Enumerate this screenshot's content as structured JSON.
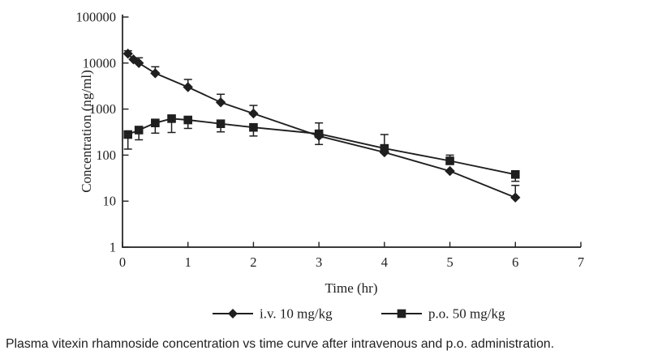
{
  "theme": {
    "background": "#ffffff",
    "ink": "#1f1f1f"
  },
  "caption": "Plasma vitexin rhamnoside concentration vs time curve after intravenous and p.o. administration.",
  "chart_data": {
    "type": "line",
    "title": "",
    "xlabel": "Time (hr)",
    "ylabel": "Concentration (ng/ml)",
    "x_ticks": [
      0,
      1,
      2,
      3,
      4,
      5,
      6,
      7
    ],
    "y_ticks": [
      1,
      10,
      100,
      1000,
      10000,
      100000
    ],
    "xlim": [
      0,
      7
    ],
    "ylim": [
      1,
      100000
    ],
    "y_scale": "log",
    "grid": false,
    "legend_position": "bottom",
    "series": [
      {
        "name": "i.v. 10 mg/kg",
        "marker": "diamond",
        "color": "#1f1f1f",
        "points": [
          {
            "t": 0.083,
            "v": 16000,
            "hi": 18500
          },
          {
            "t": 0.167,
            "v": 12000
          },
          {
            "t": 0.25,
            "v": 10000,
            "hi": 13000
          },
          {
            "t": 0.5,
            "v": 6000,
            "hi": 8300
          },
          {
            "t": 1,
            "v": 3000,
            "hi": 4400
          },
          {
            "t": 1.5,
            "v": 1400,
            "hi": 2100
          },
          {
            "t": 2,
            "v": 800,
            "hi": 1200
          },
          {
            "t": 3,
            "v": 260,
            "lo": 170
          },
          {
            "t": 4,
            "v": 115
          },
          {
            "t": 5,
            "v": 45
          },
          {
            "t": 6,
            "v": 12,
            "hi": 22
          }
        ]
      },
      {
        "name": "p.o. 50 mg/kg",
        "marker": "square",
        "color": "#1f1f1f",
        "points": [
          {
            "t": 0.083,
            "v": 280,
            "lo": 135
          },
          {
            "t": 0.25,
            "v": 350,
            "lo": 215
          },
          {
            "t": 0.5,
            "v": 500,
            "lo": 300
          },
          {
            "t": 0.75,
            "v": 620,
            "lo": 310
          },
          {
            "t": 1,
            "v": 580,
            "lo": 380
          },
          {
            "t": 1.5,
            "v": 480,
            "lo": 320
          },
          {
            "t": 2,
            "v": 400,
            "lo": 260
          },
          {
            "t": 3,
            "v": 290,
            "hi": 500
          },
          {
            "t": 4,
            "v": 140,
            "hi": 280
          },
          {
            "t": 5,
            "v": 75,
            "hi": 100
          },
          {
            "t": 6,
            "v": 38,
            "lo": 27
          }
        ]
      }
    ]
  }
}
